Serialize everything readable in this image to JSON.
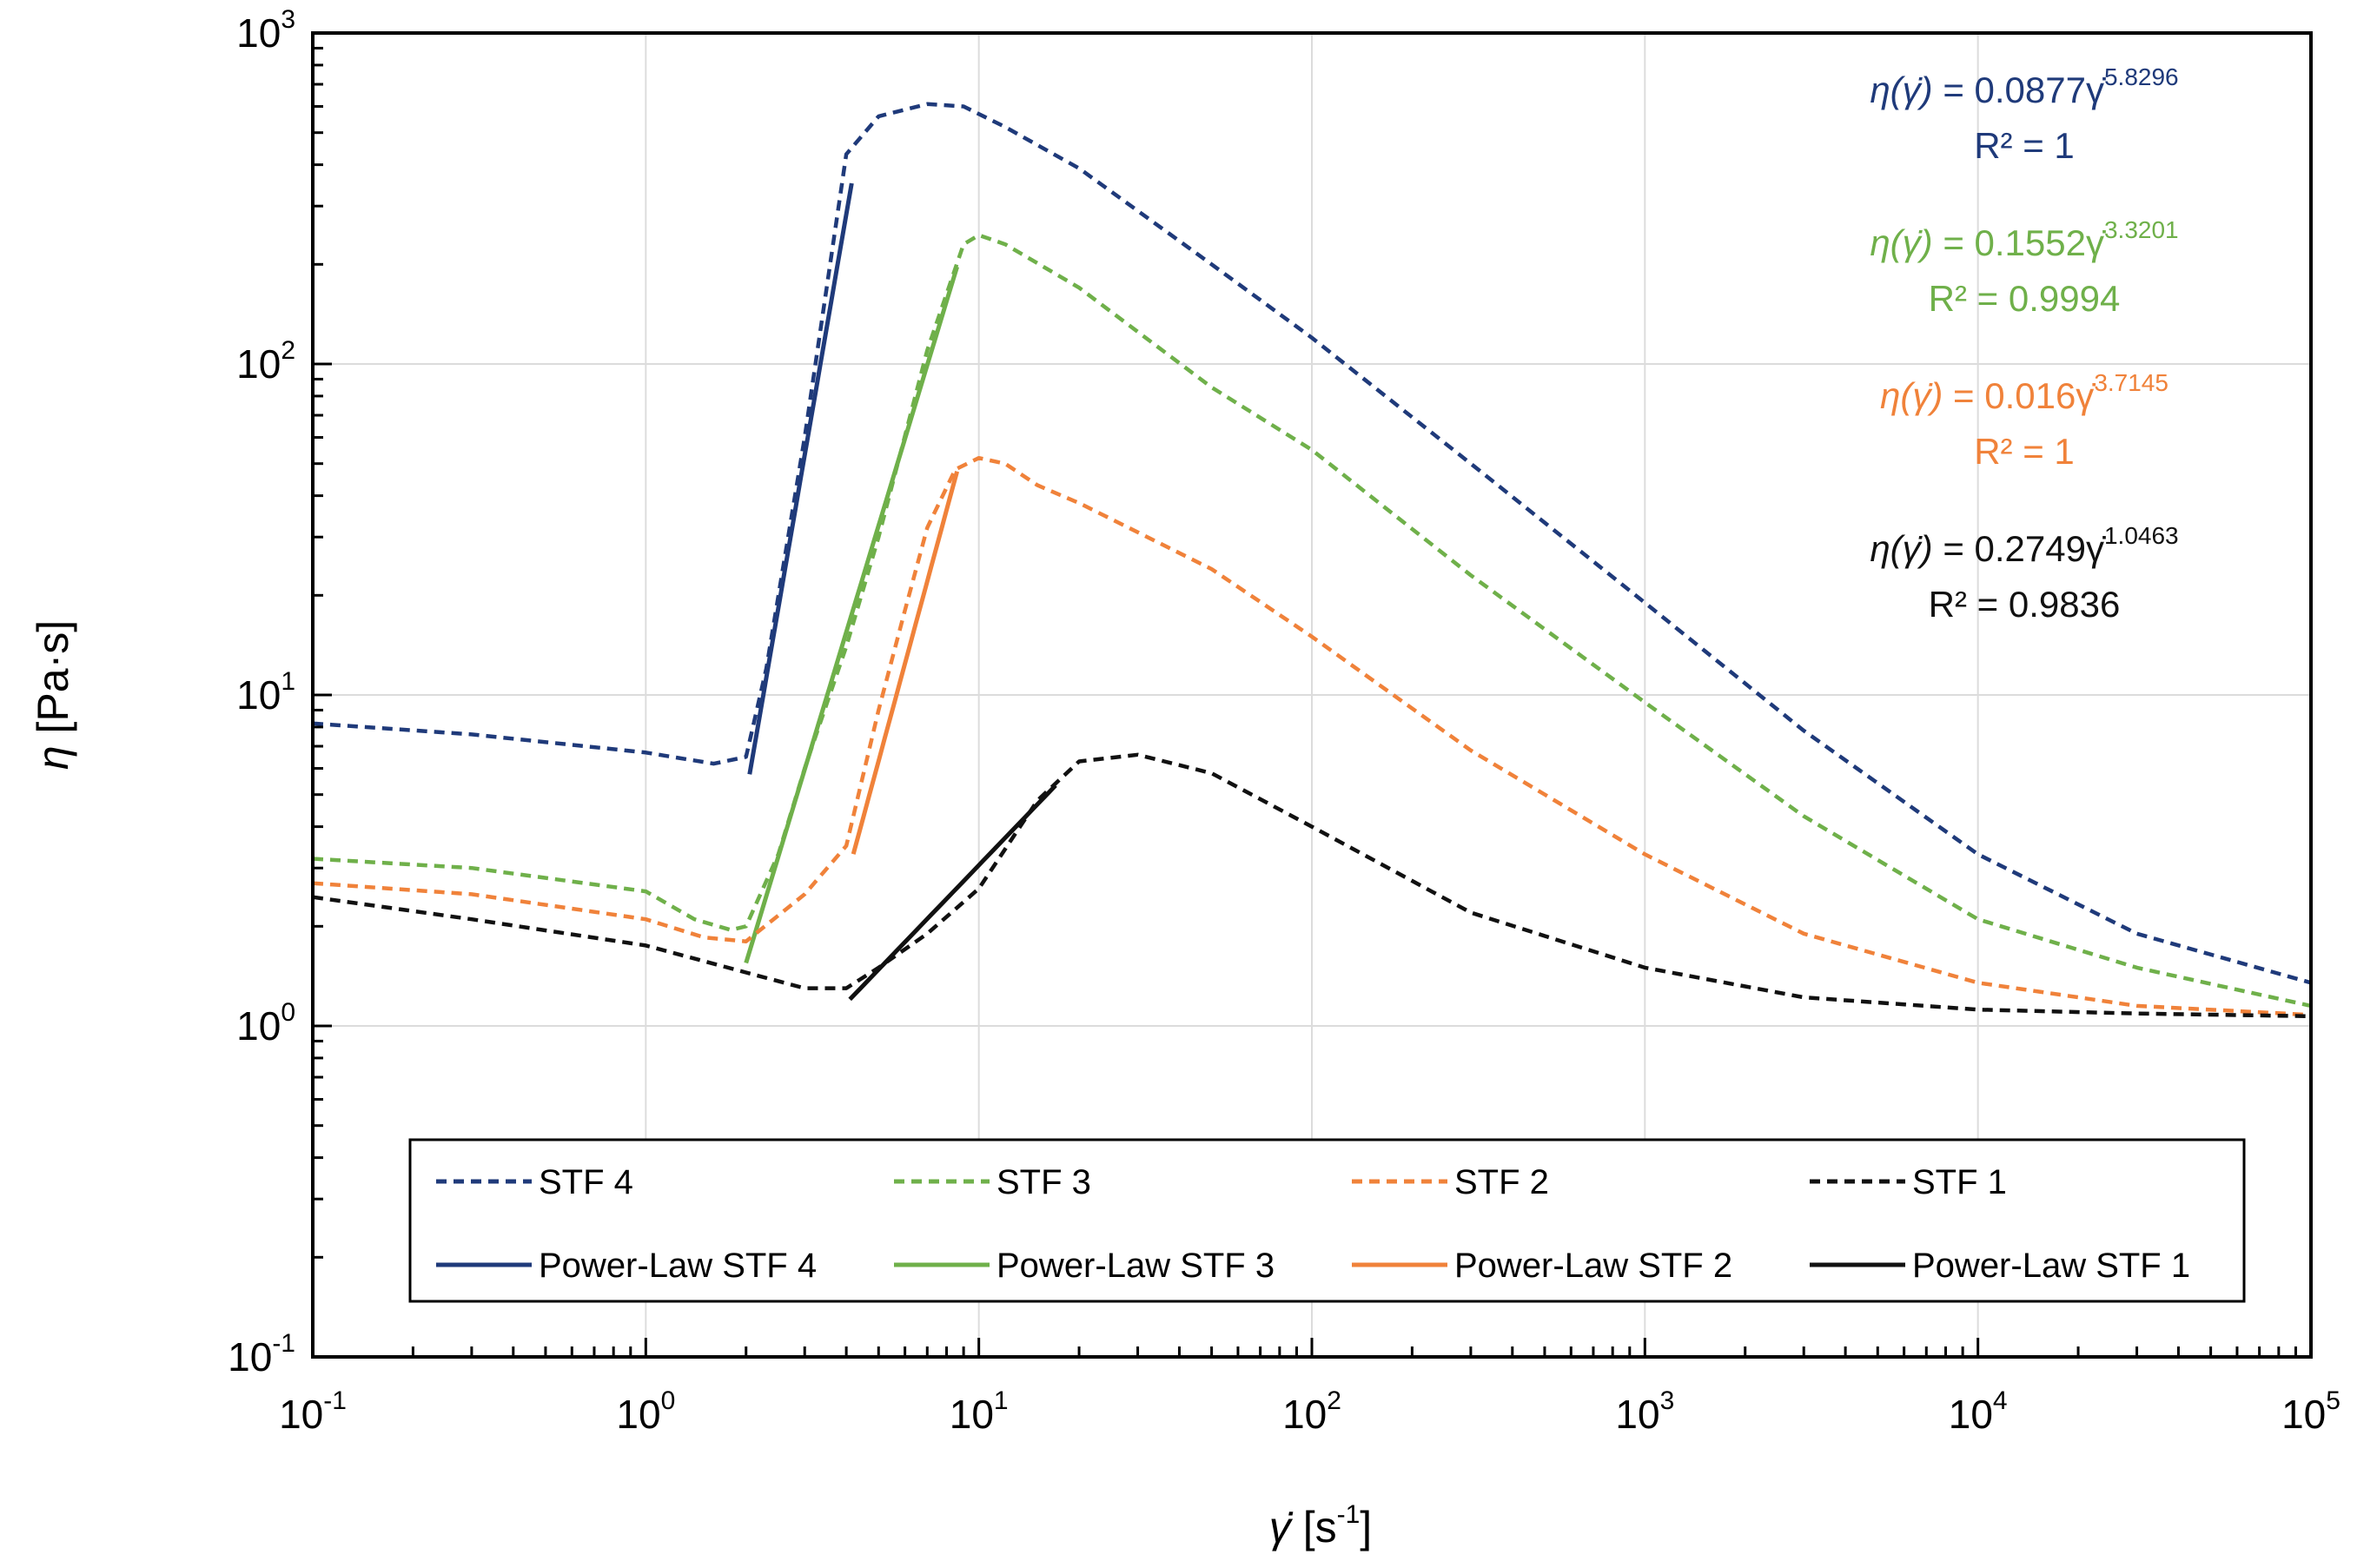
{
  "chart_data": {
    "type": "line",
    "title": "",
    "xscale": "log",
    "yscale": "log",
    "xlabel": {
      "symbol": "γ̇",
      "unit": " [s",
      "unit_exp": "-1",
      "unit_close": "]"
    },
    "ylabel": {
      "symbol": "η",
      "unit": " [Pa·s]"
    },
    "xlim": [
      0.1,
      100000
    ],
    "ylim": [
      0.1,
      1000
    ],
    "x_ticks": [
      {
        "base": "10",
        "exp": "-1",
        "value": 0.1
      },
      {
        "base": "10",
        "exp": "0",
        "value": 1
      },
      {
        "base": "10",
        "exp": "1",
        "value": 10
      },
      {
        "base": "10",
        "exp": "2",
        "value": 100
      },
      {
        "base": "10",
        "exp": "3",
        "value": 1000
      },
      {
        "base": "10",
        "exp": "4",
        "value": 10000
      },
      {
        "base": "10",
        "exp": "5",
        "value": 100000
      }
    ],
    "y_ticks": [
      {
        "base": "10",
        "exp": "-1",
        "value": 0.1
      },
      {
        "base": "10",
        "exp": "0",
        "value": 1
      },
      {
        "base": "10",
        "exp": "1",
        "value": 10
      },
      {
        "base": "10",
        "exp": "2",
        "value": 100
      },
      {
        "base": "10",
        "exp": "3",
        "value": 1000
      }
    ],
    "grid": true,
    "legend_position": "bottom",
    "series": [
      {
        "name": "STF 4",
        "color": "#1f3a7a",
        "dash": true,
        "x": [
          0.1,
          0.3,
          1.0,
          1.6,
          2.0,
          2.3,
          3.0,
          4.0,
          5.0,
          7.0,
          9.0,
          12,
          20,
          50,
          100,
          300,
          1000,
          3000,
          10000,
          30000,
          100000
        ],
        "y": [
          8.2,
          7.6,
          6.7,
          6.2,
          6.5,
          12,
          60,
          430,
          560,
          610,
          600,
          520,
          390,
          200,
          120,
          50,
          19,
          7.8,
          3.3,
          1.9,
          1.35
        ]
      },
      {
        "name": "STF 3",
        "color": "#6fb04a",
        "dash": true,
        "x": [
          0.1,
          0.3,
          1.0,
          1.4,
          1.8,
          2.0,
          2.5,
          3.0,
          4.0,
          5.0,
          7.0,
          9.0,
          10,
          12,
          20,
          50,
          100,
          300,
          1000,
          3000,
          10000,
          30000,
          100000
        ],
        "y": [
          3.2,
          3.0,
          2.55,
          2.1,
          1.95,
          2.0,
          3.3,
          6.0,
          14,
          30,
          110,
          230,
          245,
          230,
          170,
          85,
          55,
          23,
          9.5,
          4.3,
          2.1,
          1.5,
          1.15
        ]
      },
      {
        "name": "STF 2",
        "color": "#f0823a",
        "dash": true,
        "x": [
          0.1,
          0.3,
          1.0,
          1.5,
          2.0,
          3.0,
          4.0,
          5.0,
          6.0,
          7.0,
          8.5,
          10,
          12,
          15,
          20,
          50,
          100,
          300,
          1000,
          3000,
          10000,
          30000,
          100000
        ],
        "y": [
          2.7,
          2.5,
          2.1,
          1.85,
          1.8,
          2.5,
          3.5,
          9.0,
          18,
          32,
          48,
          52,
          50,
          43,
          38,
          24,
          15,
          6.8,
          3.3,
          1.9,
          1.35,
          1.15,
          1.08
        ]
      },
      {
        "name": "STF 1",
        "color": "#111111",
        "dash": true,
        "x": [
          0.1,
          0.3,
          1.0,
          2.0,
          3.0,
          4.0,
          5.0,
          7.0,
          10,
          15,
          20,
          30,
          50,
          100,
          300,
          1000,
          3000,
          10000,
          30000,
          100000
        ],
        "y": [
          2.45,
          2.1,
          1.75,
          1.45,
          1.3,
          1.3,
          1.5,
          1.9,
          2.6,
          4.8,
          6.3,
          6.6,
          5.8,
          4.0,
          2.2,
          1.5,
          1.22,
          1.12,
          1.09,
          1.07
        ]
      },
      {
        "name": "Power-Law STF 4",
        "color": "#1f3a7a",
        "dash": false,
        "k": 0.0877,
        "n": 5.8296,
        "x_range": [
          2.05,
          4.15
        ]
      },
      {
        "name": "Power-Law STF 3",
        "color": "#6fb04a",
        "dash": false,
        "k": 0.1552,
        "n": 3.3201,
        "x_range": [
          2.0,
          8.6
        ]
      },
      {
        "name": "Power-Law STF 2",
        "color": "#f0823a",
        "dash": false,
        "k": 0.016,
        "n": 3.7145,
        "x_range": [
          4.2,
          8.6
        ]
      },
      {
        "name": "Power-Law STF 1",
        "color": "#111111",
        "dash": false,
        "k": 0.2749,
        "n": 1.0463,
        "x_range": [
          4.1,
          17
        ]
      }
    ],
    "annotations": [
      {
        "color": "#1f3a7a",
        "prefix": "η(γ̇)",
        "equals": " = 0.0877γ̇",
        "exponent": "5.8296",
        "r2": "R² = 1"
      },
      {
        "color": "#6fb04a",
        "prefix": "η(γ̇)",
        "equals": " = 0.1552γ̇",
        "exponent": "3.3201",
        "r2": "R² = 0.9994"
      },
      {
        "color": "#f0823a",
        "prefix": "η(γ̇)",
        "equals": " = 0.016γ̇",
        "exponent": "3.7145",
        "r2": "R² = 1"
      },
      {
        "color": "#111111",
        "prefix": "η(γ̇)",
        "equals": " = 0.2749γ̇",
        "exponent": "1.0463",
        "r2": "R² = 0.9836"
      }
    ]
  }
}
